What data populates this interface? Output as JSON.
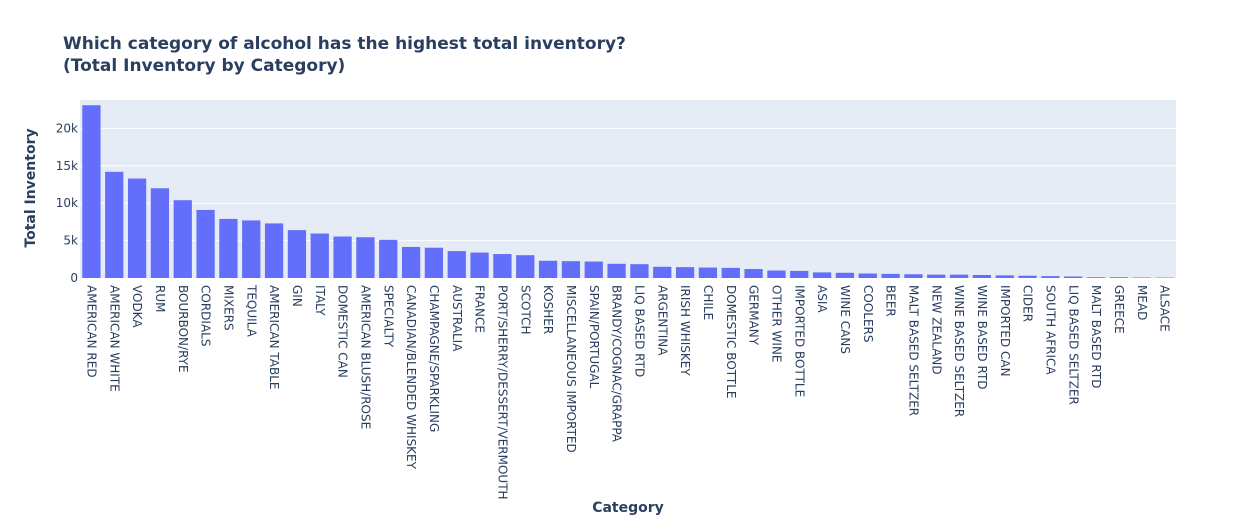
{
  "chart_data": {
    "type": "bar",
    "title": "Which category of alcohol has the highest total inventory?",
    "subtitle": "(Total Inventory by Category)",
    "xlabel": "Category",
    "ylabel": "Total Inventory",
    "ylim": [
      0,
      23800
    ],
    "yticks": [
      {
        "value": 0,
        "label": "0"
      },
      {
        "value": 5000,
        "label": "5k"
      },
      {
        "value": 10000,
        "label": "10k"
      },
      {
        "value": 15000,
        "label": "15k"
      },
      {
        "value": 20000,
        "label": "20k"
      }
    ],
    "grid": true,
    "bar_color": "#636efa",
    "plot_background": "#e5ecf6",
    "categories": [
      "AMERICAN RED",
      "AMERICAN WHITE",
      "VODKA",
      "RUM",
      "BOURBON/RYE",
      "CORDIALS",
      "MIXERS",
      "TEQUILA",
      "AMERICAN TABLE",
      "GIN",
      "ITALY",
      "DOMESTIC CAN",
      "AMERICAN BLUSH/ROSE",
      "SPECIALTY",
      "CANADIAN/BLENDED WHISKEY",
      "CHAMPAGNE/SPARKLING",
      "AUSTRALIA",
      "FRANCE",
      "PORT/SHERRY/DESSERT/VERMOUTH",
      "SCOTCH",
      "KOSHER",
      "MISCELLANEOUS IMPORTED",
      "SPAIN/PORTUGAL",
      "BRANDY/COGNAC/GRAPPA",
      "LIQ BASED RTD",
      "ARGENTINA",
      "IRISH WHISKEY",
      "CHILE",
      "DOMESTIC BOTTLE",
      "GERMANY",
      "OTHER WINE",
      "IMPORTED BOTTLE",
      "ASIA",
      "WINE CANS",
      "COOLERS",
      "BEER",
      "MALT BASED SELTZER",
      "NEW ZEALAND",
      "WINE BASED SELTZER",
      "WINE BASED RTD",
      "IMPORTED CAN",
      "CIDER",
      "SOUTH AFRICA",
      "LIQ BASED SELTZER",
      "MALT BASED RTD",
      "GREECE",
      "MEAD",
      "ALSACE"
    ],
    "values": [
      23100,
      14200,
      13300,
      12000,
      10400,
      9100,
      7900,
      7700,
      7300,
      6400,
      5950,
      5550,
      5450,
      5100,
      4150,
      4050,
      3600,
      3400,
      3200,
      3050,
      2300,
      2250,
      2200,
      1900,
      1850,
      1500,
      1450,
      1400,
      1350,
      1200,
      1000,
      950,
      750,
      700,
      600,
      550,
      500,
      450,
      450,
      400,
      350,
      300,
      250,
      200,
      100,
      100,
      60,
      50
    ]
  }
}
